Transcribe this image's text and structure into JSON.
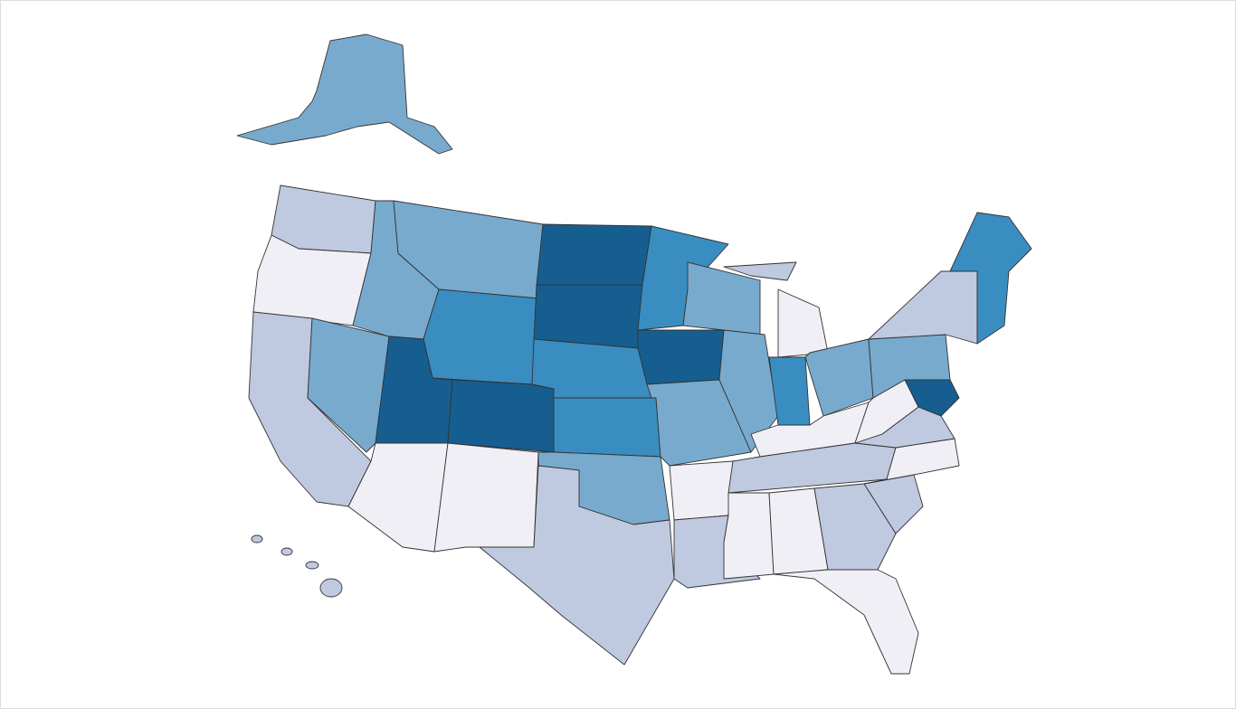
{
  "map": {
    "palette": [
      "#f1eff6",
      "#bfc9e0",
      "#78aacd",
      "#3a8dc0",
      "#165e8f"
    ]
  }
}
